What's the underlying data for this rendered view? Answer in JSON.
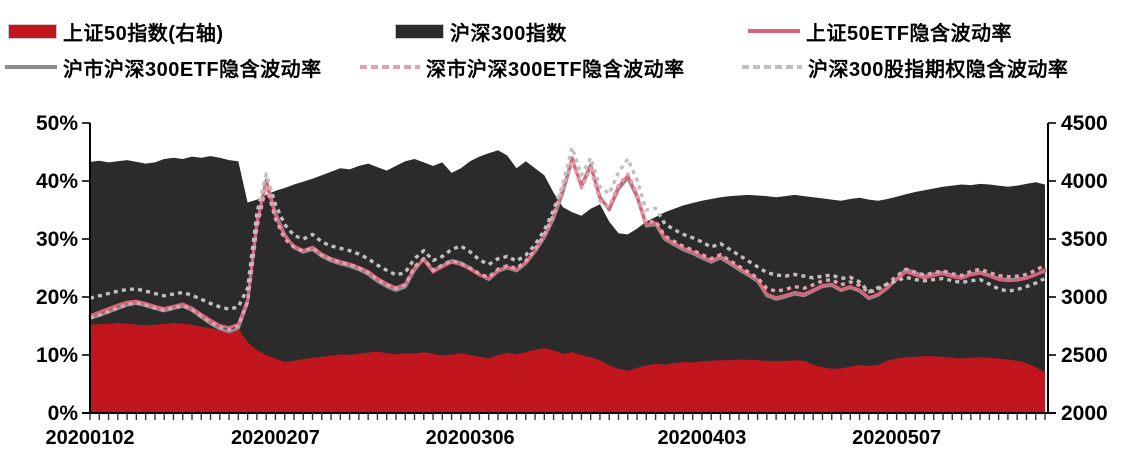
{
  "legend": {
    "items": [
      {
        "label": "上证50指数(右轴)",
        "swatch": "area",
        "color": "#C1161D"
      },
      {
        "label": "沪深300指数",
        "swatch": "area",
        "color": "#2B2B2B"
      },
      {
        "label": "上证50ETF隐含波动率",
        "swatch": "line",
        "color": "#D8637A"
      },
      {
        "label": "沪市沪深300ETF隐含波动率",
        "swatch": "line",
        "color": "#8C8C8C"
      },
      {
        "label": "深市沪深300ETF隐含波动率",
        "swatch": "dashed",
        "color": "#E3A0AC"
      },
      {
        "label": "沪深300股指期权隐含波动率",
        "swatch": "dashed",
        "color": "#C0C0C0"
      }
    ]
  },
  "chart_data": {
    "type": "combo-area-line",
    "grid": false,
    "left_axis": {
      "min": 0,
      "max": 50,
      "ticks": [
        {
          "label": "50%",
          "value": 50
        },
        {
          "label": "40%",
          "value": 40
        },
        {
          "label": "30%",
          "value": 30
        },
        {
          "label": "20%",
          "value": 20
        },
        {
          "label": "10%",
          "value": 10
        },
        {
          "label": "0%",
          "value": 0
        }
      ]
    },
    "right_axis": {
      "min": 2000,
      "max": 4500,
      "ticks": [
        {
          "label": "4500",
          "value": 4500
        },
        {
          "label": "4000",
          "value": 4000
        },
        {
          "label": "3500",
          "value": 3500
        },
        {
          "label": "3000",
          "value": 3000
        },
        {
          "label": "2500",
          "value": 2500
        },
        {
          "label": "2000",
          "value": 2000
        }
      ]
    },
    "x_axis": {
      "labels": [
        {
          "label": "20200102",
          "day": 0
        },
        {
          "label": "20200207",
          "day": 20
        },
        {
          "label": "20200306",
          "day": 41
        },
        {
          "label": "20200403",
          "day": 66
        },
        {
          "label": "20200507",
          "day": 87
        }
      ]
    },
    "series": [
      {
        "id": "csi300-index-area",
        "name": "沪深300指数",
        "type": "area",
        "axis": "right",
        "color": "#2B2B2B",
        "values": [
          4165,
          4175,
          4160,
          4170,
          4180,
          4165,
          4150,
          4160,
          4190,
          4200,
          4190,
          4210,
          4200,
          4215,
          4200,
          4180,
          4170,
          3815,
          3840,
          3880,
          3915,
          3940,
          3970,
          3995,
          4020,
          4050,
          4080,
          4110,
          4100,
          4130,
          4150,
          4120,
          4090,
          4130,
          4170,
          4190,
          4160,
          4130,
          4160,
          4070,
          4110,
          4170,
          4210,
          4240,
          4265,
          4220,
          4110,
          4170,
          4110,
          4050,
          3900,
          3775,
          3730,
          3700,
          3760,
          3800,
          3650,
          3550,
          3540,
          3590,
          3650,
          3690,
          3730,
          3760,
          3790,
          3810,
          3830,
          3845,
          3860,
          3870,
          3875,
          3880,
          3875,
          3870,
          3860,
          3870,
          3880,
          3870,
          3860,
          3850,
          3840,
          3830,
          3845,
          3855,
          3840,
          3830,
          3845,
          3865,
          3885,
          3905,
          3920,
          3935,
          3950,
          3960,
          3970,
          3965,
          3975,
          3970,
          3960,
          3950,
          3960,
          3975,
          3990,
          3970
        ]
      },
      {
        "id": "sse50-index-area",
        "name": "上证50指数(右轴)",
        "type": "area",
        "axis": "right",
        "color": "#C1161D",
        "values": [
          2760,
          2765,
          2770,
          2775,
          2770,
          2760,
          2755,
          2760,
          2770,
          2775,
          2770,
          2760,
          2745,
          2730,
          2715,
          2710,
          2725,
          2610,
          2540,
          2500,
          2470,
          2440,
          2450,
          2465,
          2475,
          2485,
          2495,
          2505,
          2500,
          2510,
          2520,
          2530,
          2515,
          2505,
          2515,
          2510,
          2525,
          2510,
          2495,
          2505,
          2515,
          2500,
          2485,
          2470,
          2500,
          2520,
          2505,
          2525,
          2545,
          2560,
          2540,
          2510,
          2525,
          2500,
          2480,
          2455,
          2410,
          2380,
          2365,
          2390,
          2410,
          2425,
          2415,
          2430,
          2440,
          2435,
          2445,
          2450,
          2455,
          2455,
          2460,
          2460,
          2455,
          2450,
          2445,
          2450,
          2455,
          2450,
          2415,
          2395,
          2380,
          2385,
          2400,
          2415,
          2405,
          2415,
          2450,
          2470,
          2480,
          2485,
          2490,
          2490,
          2485,
          2475,
          2470,
          2475,
          2480,
          2475,
          2470,
          2460,
          2450,
          2430,
          2395,
          2350
        ]
      },
      {
        "id": "sh-csi300etf-iv-line",
        "name": "沪市沪深300ETF隐含波动率",
        "type": "line",
        "style": "solid",
        "axis": "left",
        "color": "#8C8C8C",
        "values": [
          16.3,
          16.8,
          17.4,
          18.0,
          18.6,
          18.9,
          18.5,
          18.0,
          17.6,
          18.0,
          18.4,
          17.7,
          16.5,
          15.4,
          14.5,
          14.0,
          14.6,
          19.0,
          32.5,
          40.2,
          34.5,
          30.8,
          28.5,
          27.7,
          28.2,
          27.0,
          26.2,
          25.7,
          25.3,
          24.7,
          23.9,
          22.7,
          21.8,
          21.1,
          21.7,
          24.6,
          26.6,
          24.6,
          25.4,
          26.3,
          25.9,
          25.0,
          23.9,
          23.0,
          24.4,
          25.0,
          24.5,
          25.8,
          27.8,
          30.2,
          33.5,
          38.0,
          43.5,
          39.3,
          42.8,
          37.3,
          35.0,
          38.6,
          40.5,
          37.2,
          32.2,
          32.5,
          29.9,
          29.0,
          28.1,
          27.5,
          26.7,
          26.0,
          26.7,
          25.7,
          24.7,
          23.7,
          22.7,
          20.2,
          19.6,
          20.0,
          20.5,
          20.2,
          21.0,
          21.8,
          22.0,
          21.1,
          21.6,
          21.0,
          19.7,
          20.3,
          21.5,
          23.1,
          24.8,
          24.2,
          23.6,
          24.0,
          24.3,
          23.8,
          23.4,
          24.0,
          24.3,
          23.8,
          23.2,
          23.0,
          23.1,
          23.3,
          23.9,
          24.4
        ]
      },
      {
        "id": "sse50etf-iv-line",
        "name": "上证50ETF隐含波动率",
        "type": "line",
        "style": "solid",
        "axis": "left",
        "color": "#D8637A",
        "values": [
          16.8,
          17.4,
          18.0,
          18.6,
          19.1,
          19.3,
          18.9,
          18.4,
          18.0,
          18.4,
          18.8,
          18.1,
          17.0,
          16.0,
          15.1,
          14.7,
          15.3,
          19.5,
          33.0,
          39.8,
          34.0,
          30.5,
          28.8,
          28.0,
          28.6,
          27.4,
          26.6,
          26.1,
          25.7,
          25.1,
          24.4,
          23.2,
          22.3,
          21.6,
          22.2,
          25.0,
          26.4,
          24.3,
          25.2,
          26.0,
          25.6,
          24.8,
          23.8,
          23.2,
          24.6,
          25.2,
          24.7,
          26.0,
          28.0,
          30.5,
          34.0,
          38.5,
          44.0,
          39.0,
          42.5,
          37.0,
          35.2,
          39.0,
          40.9,
          37.5,
          32.5,
          32.8,
          30.2,
          29.3,
          28.4,
          27.8,
          27.0,
          26.3,
          27.0,
          26.0,
          25.0,
          24.0,
          23.0,
          20.5,
          19.9,
          20.3,
          20.8,
          20.5,
          21.2,
          22.0,
          22.2,
          21.3,
          21.8,
          21.2,
          19.9,
          20.5,
          21.6,
          23.0,
          24.3,
          23.8,
          23.3,
          23.7,
          24.0,
          23.5,
          23.2,
          23.8,
          24.1,
          23.6,
          23.0,
          22.8,
          22.9,
          23.2,
          23.8,
          24.7
        ]
      },
      {
        "id": "sz-csi300etf-iv-line",
        "name": "深市沪深300ETF隐含波动率",
        "type": "line",
        "style": "dashed",
        "axis": "left",
        "color": "#E3A0AC",
        "values": [
          16.4,
          16.9,
          17.5,
          18.1,
          18.7,
          19.0,
          18.6,
          18.1,
          17.7,
          18.1,
          18.5,
          17.8,
          16.7,
          15.6,
          14.8,
          14.4,
          15.0,
          19.2,
          32.0,
          39.2,
          33.5,
          30.0,
          28.6,
          27.9,
          28.5,
          27.2,
          26.5,
          26.0,
          25.6,
          25.0,
          24.2,
          23.0,
          22.1,
          21.5,
          22.1,
          25.2,
          26.6,
          24.6,
          25.5,
          26.3,
          25.8,
          25.0,
          24.0,
          23.4,
          24.8,
          25.4,
          24.9,
          26.2,
          28.2,
          30.8,
          34.2,
          38.8,
          43.6,
          38.8,
          42.2,
          36.6,
          35.5,
          39.3,
          41.2,
          37.8,
          32.8,
          33.1,
          30.5,
          29.6,
          28.7,
          28.1,
          27.3,
          26.6,
          27.3,
          26.3,
          25.3,
          24.3,
          23.3,
          21.5,
          21.0,
          21.3,
          21.8,
          21.5,
          22.1,
          22.8,
          23.0,
          22.1,
          22.6,
          22.0,
          20.8,
          21.3,
          22.3,
          23.6,
          24.8,
          24.3,
          23.8,
          24.2,
          24.5,
          24.0,
          23.7,
          24.4,
          24.8,
          24.2,
          23.7,
          23.5,
          23.6,
          23.9,
          24.6,
          25.5
        ]
      },
      {
        "id": "csi300-option-iv-line",
        "name": "沪深300股指期权隐含波动率",
        "type": "line",
        "style": "dashed",
        "axis": "left",
        "color": "#C0C0C0",
        "values": [
          19.8,
          20.2,
          20.6,
          21.0,
          21.3,
          21.4,
          21.0,
          20.6,
          20.2,
          20.5,
          20.8,
          20.3,
          19.6,
          18.9,
          18.3,
          17.9,
          18.3,
          21.5,
          34.5,
          41.2,
          36.0,
          32.5,
          30.6,
          30.0,
          30.8,
          29.5,
          28.8,
          28.4,
          28.0,
          27.4,
          26.6,
          25.5,
          24.6,
          23.8,
          24.2,
          26.6,
          28.0,
          26.3,
          27.0,
          28.2,
          28.8,
          27.8,
          26.4,
          25.6,
          26.6,
          27.0,
          26.2,
          27.2,
          29.0,
          31.5,
          35.0,
          39.5,
          45.8,
          41.0,
          44.0,
          39.0,
          37.8,
          41.5,
          43.8,
          40.2,
          35.0,
          35.3,
          32.6,
          31.6,
          30.8,
          30.2,
          29.5,
          28.6,
          29.2,
          28.2,
          27.2,
          26.2,
          25.2,
          24.2,
          23.8,
          23.6,
          23.9,
          23.6,
          23.3,
          23.6,
          23.8,
          23.2,
          23.4,
          22.6,
          20.9,
          21.6,
          22.2,
          22.8,
          23.4,
          23.0,
          22.8,
          23.0,
          23.2,
          22.8,
          22.5,
          22.8,
          23.0,
          22.2,
          21.4,
          21.0,
          21.3,
          21.8,
          22.4,
          23.2
        ]
      }
    ]
  }
}
